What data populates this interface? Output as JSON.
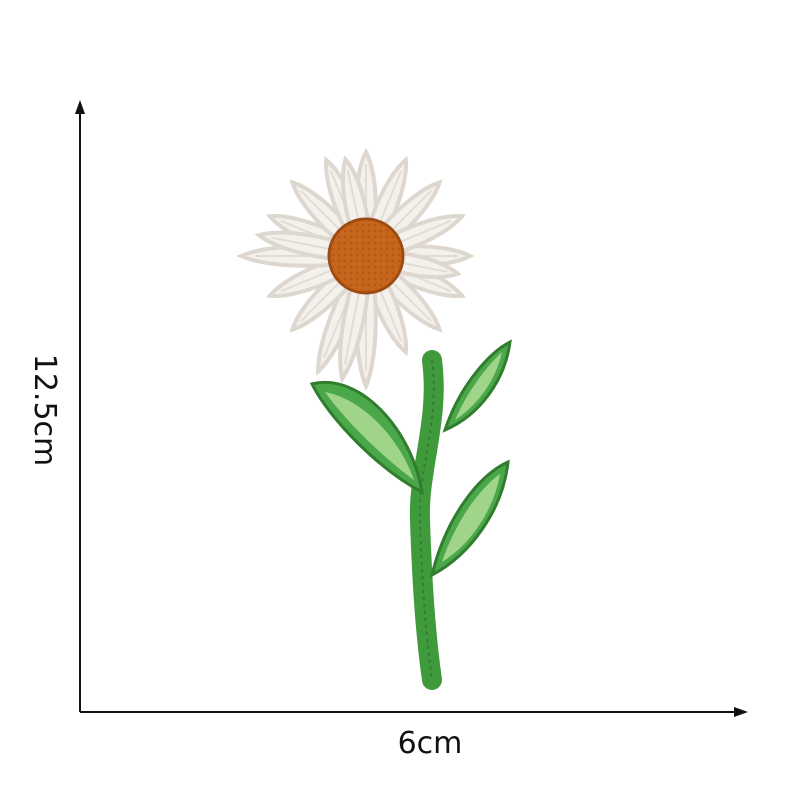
{
  "dimensions": {
    "width_label": "6cm",
    "height_label": "12.5cm"
  },
  "colors": {
    "background": "#ffffff",
    "axis": "#111111",
    "petal": "#f4f1ec",
    "petal_shade": "#ddd7cf",
    "center": "#c8671c",
    "center_dark": "#9c4c12",
    "stem": "#3f9a3c",
    "leaf": "#4aa84a",
    "leaf_light": "#9fd48a"
  }
}
